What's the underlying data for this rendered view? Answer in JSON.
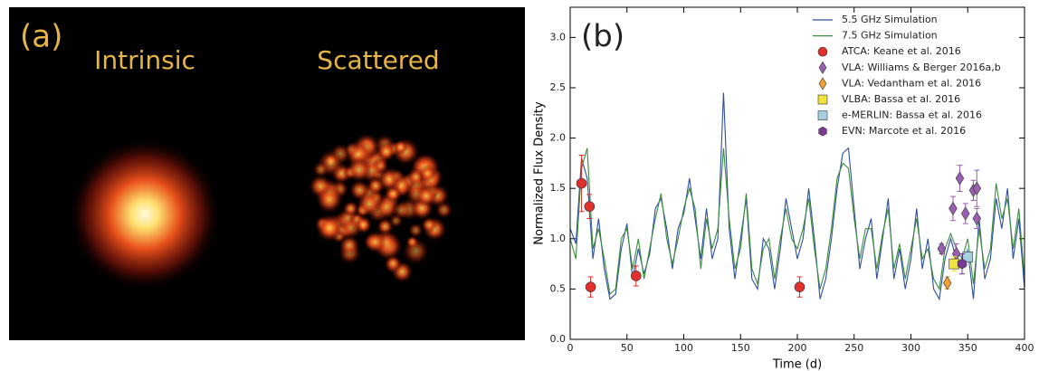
{
  "panel_a": {
    "label": "(a)",
    "left_label": "Intrinsic",
    "right_label": "Scattered"
  },
  "chart_data": {
    "type": "line",
    "annotation": "(b)",
    "x_label": "Time (d)",
    "y_label": "Normalized Flux Density",
    "xlim": [
      0,
      400
    ],
    "xticks": [
      0,
      50,
      100,
      150,
      200,
      250,
      300,
      350,
      400
    ],
    "ylim": [
      0,
      3.3
    ],
    "yticks": [
      {
        "value": 0,
        "label": "0.0"
      },
      0.5,
      {
        "value": 1,
        "label": "1.0"
      },
      1.5,
      {
        "value": 2,
        "label": "2.0"
      },
      2.5,
      {
        "value": 3,
        "label": "3.0"
      }
    ],
    "legend": "upper right",
    "x": [
      0,
      5,
      10,
      15,
      20,
      25,
      30,
      35,
      40,
      45,
      50,
      55,
      60,
      65,
      70,
      75,
      80,
      85,
      90,
      95,
      100,
      105,
      110,
      115,
      120,
      125,
      130,
      135,
      140,
      145,
      150,
      155,
      160,
      165,
      170,
      175,
      180,
      185,
      190,
      195,
      200,
      205,
      210,
      215,
      220,
      225,
      230,
      235,
      240,
      245,
      250,
      255,
      260,
      265,
      270,
      275,
      280,
      285,
      290,
      295,
      300,
      305,
      310,
      315,
      320,
      325,
      330,
      335,
      340,
      345,
      350,
      355,
      360,
      365,
      370,
      375,
      380,
      385,
      390,
      395,
      400
    ],
    "series": [
      {
        "name": "5.5 GHz Simulation",
        "type": "line",
        "color": "#2b4f9e",
        "values": [
          1.1,
          0.95,
          1.8,
          1.6,
          0.8,
          1.2,
          0.7,
          0.4,
          0.45,
          0.9,
          1.15,
          0.6,
          0.9,
          0.65,
          0.85,
          1.3,
          1.4,
          1.1,
          0.7,
          1.1,
          1.25,
          1.6,
          1.2,
          0.8,
          1.3,
          0.8,
          1.0,
          2.45,
          1.1,
          0.6,
          1.0,
          1.4,
          0.6,
          0.5,
          1.0,
          0.9,
          0.5,
          0.9,
          1.4,
          1.1,
          0.8,
          1.0,
          1.5,
          1.0,
          0.4,
          0.6,
          1.0,
          1.5,
          1.85,
          1.9,
          1.3,
          0.7,
          1.0,
          1.2,
          0.6,
          1.0,
          1.4,
          0.6,
          0.9,
          0.5,
          0.8,
          1.3,
          0.7,
          1.0,
          0.5,
          0.4,
          0.8,
          1.0,
          0.8,
          0.7,
          0.9,
          0.4,
          1.2,
          0.6,
          0.8,
          1.4,
          1.1,
          1.5,
          0.8,
          1.2,
          0.5
        ]
      },
      {
        "name": "7.5 GHz Simulation",
        "type": "line",
        "color": "#3c8c3c",
        "values": [
          1.0,
          0.8,
          1.7,
          1.9,
          0.9,
          1.1,
          0.8,
          0.45,
          0.5,
          1.0,
          1.1,
          0.7,
          1.0,
          0.6,
          0.9,
          1.2,
          1.45,
          1.0,
          0.75,
          1.0,
          1.3,
          1.5,
          1.3,
          0.7,
          1.2,
          0.9,
          1.1,
          1.9,
          1.2,
          0.7,
          0.9,
          1.45,
          0.7,
          0.55,
          0.9,
          1.0,
          0.6,
          1.0,
          1.3,
          1.0,
          0.9,
          1.1,
          1.4,
          0.9,
          0.5,
          0.7,
          1.1,
          1.6,
          1.75,
          1.7,
          1.2,
          0.8,
          1.1,
          1.1,
          0.7,
          1.05,
          1.3,
          0.7,
          0.95,
          0.6,
          0.9,
          1.2,
          0.8,
          0.9,
          0.6,
          0.5,
          0.9,
          1.05,
          0.9,
          0.8,
          1.0,
          0.55,
          1.1,
          0.7,
          0.9,
          1.55,
          1.2,
          1.4,
          0.9,
          1.3,
          0.6
        ]
      },
      {
        "name": "ATCA: Keane et al. 2016",
        "type": "errorbar",
        "marker": "circle",
        "color": "#e0302c",
        "x": [
          10,
          17,
          18,
          58,
          202
        ],
        "values": [
          1.55,
          1.32,
          0.52,
          0.63,
          0.52
        ],
        "errors": [
          0.28,
          0.12,
          0.1,
          0.1,
          0.1
        ]
      },
      {
        "name": "VLA: Williams & Berger 2016a,b",
        "type": "errorbar",
        "marker": "diamond",
        "color": "#9b5fb0",
        "x": [
          327,
          337,
          340,
          343,
          348,
          355,
          358,
          358
        ],
        "values": [
          0.9,
          1.3,
          0.85,
          1.6,
          1.25,
          1.48,
          1.5,
          1.2
        ],
        "errors": [
          0.05,
          0.12,
          0.1,
          0.13,
          0.1,
          0.1,
          0.18,
          0.1
        ]
      },
      {
        "name": "VLA: Vedantham et al. 2016",
        "type": "errorbar",
        "marker": "diamond",
        "color": "#f0a030",
        "x": [
          332
        ],
        "values": [
          0.56
        ],
        "errors": [
          0.06
        ]
      },
      {
        "name": "VLBA: Bassa et al. 2016",
        "type": "errorbar",
        "marker": "square",
        "color": "#eee23c",
        "x": [
          338
        ],
        "values": [
          0.75
        ],
        "errors": [
          0.07
        ]
      },
      {
        "name": "e-MERLIN: Bassa et al. 2016",
        "type": "errorbar",
        "marker": "square",
        "color": "#a6d0e2",
        "x": [
          350
        ],
        "values": [
          0.82
        ],
        "errors": [
          0.08
        ]
      },
      {
        "name": "EVN: Marcote et al. 2016",
        "type": "errorbar",
        "marker": "hexagon",
        "color": "#7b3a92",
        "x": [
          345
        ],
        "values": [
          0.75
        ],
        "errors": [
          0.1
        ]
      }
    ]
  }
}
